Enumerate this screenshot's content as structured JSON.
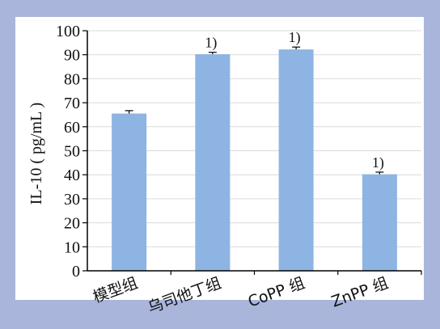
{
  "chart_data": {
    "type": "bar",
    "categories": [
      "模型组",
      "乌司他丁组",
      "CoPP 组",
      "ZnPP 组"
    ],
    "values": [
      65.5,
      90.2,
      92.2,
      40.2
    ],
    "errors": [
      1.2,
      0.8,
      1.0,
      0.9
    ],
    "annotations": [
      "",
      "1)",
      "1)",
      "1)"
    ],
    "ylabel": "IL-10 ( pg/mL )",
    "xlabel": "",
    "title": "",
    "ylim": [
      0,
      100
    ],
    "yticks": [
      "0",
      "10",
      "20",
      "30",
      "40",
      "50",
      "60",
      "70",
      "80",
      "90",
      "100"
    ],
    "grid": true,
    "colors": {
      "bar": "#8db4e2",
      "background": "#a9b5db",
      "plot": "#ffffff",
      "grid": "#d9d9d9",
      "axis": "#000000"
    }
  }
}
